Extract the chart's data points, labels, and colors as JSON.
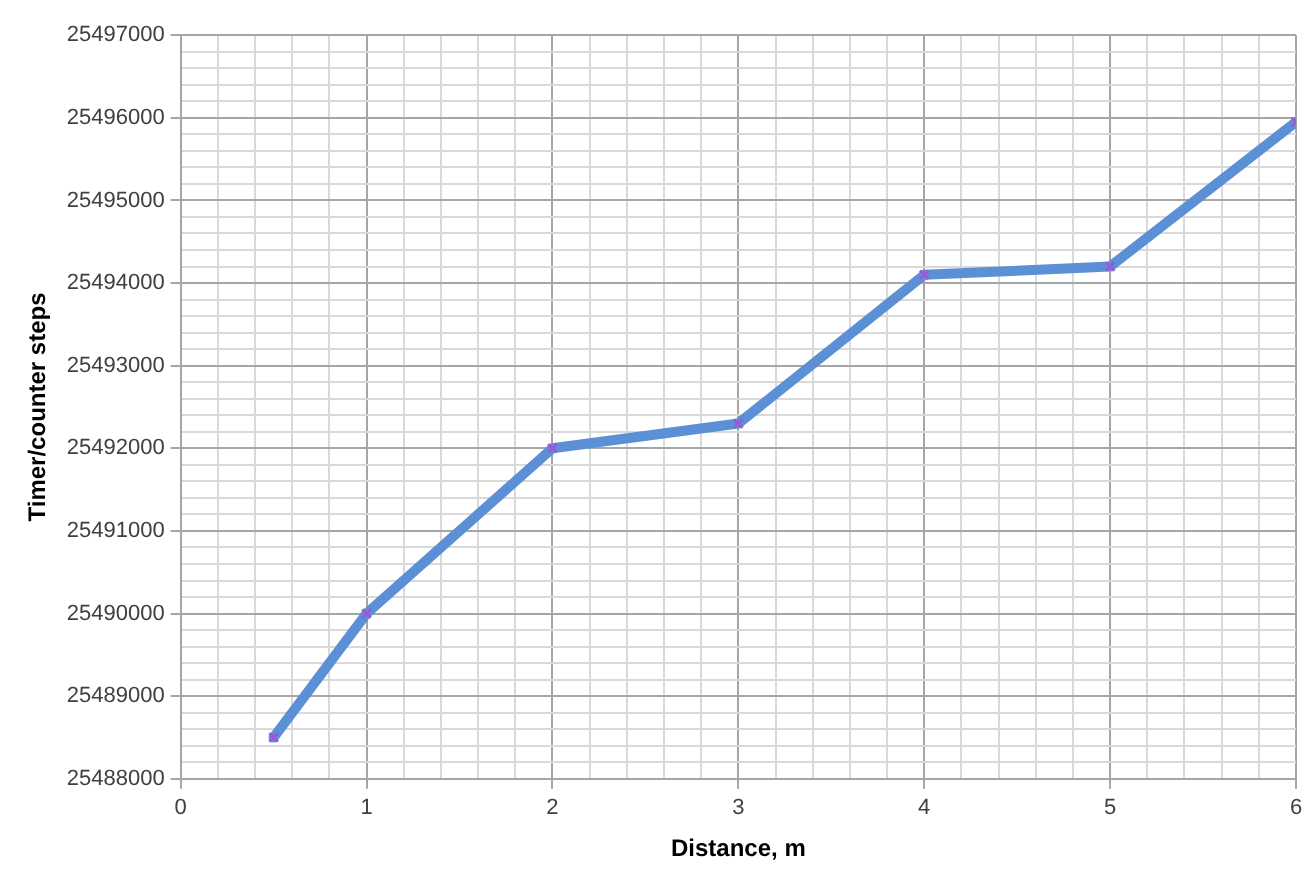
{
  "chart_data": {
    "type": "line",
    "xlabel": "Distance, m",
    "ylabel": "Timer/counter steps",
    "x": [
      0.5,
      1,
      2,
      3,
      4,
      5,
      6
    ],
    "series": [
      {
        "color": "#5b8fd6",
        "values": [
          25488500,
          25490000,
          25492000,
          25492300,
          25494100,
          25494200,
          25495950
        ]
      }
    ],
    "xlim": [
      0,
      6
    ],
    "xticks": [
      0,
      {
        "value": 0.2,
        "label": null
      },
      {
        "value": 0.4,
        "label": null
      },
      {
        "value": 0.6,
        "label": null
      },
      {
        "value": 0.8,
        "label": null
      },
      1,
      {
        "value": 1.2,
        "label": null
      },
      {
        "value": 1.4,
        "label": null
      },
      {
        "value": 1.6,
        "label": null
      },
      {
        "value": 1.8,
        "label": null
      },
      2,
      {
        "value": 2.2,
        "label": null
      },
      {
        "value": 2.4,
        "label": null
      },
      {
        "value": 2.6,
        "label": null
      },
      {
        "value": 2.8,
        "label": null
      },
      3,
      {
        "value": 3.2,
        "label": null
      },
      {
        "value": 3.4,
        "label": null
      },
      {
        "value": 3.6,
        "label": null
      },
      {
        "value": 3.8,
        "label": null
      },
      4,
      {
        "value": 4.2,
        "label": null
      },
      {
        "value": 4.4,
        "label": null
      },
      {
        "value": 4.6,
        "label": null
      },
      {
        "value": 4.8,
        "label": null
      },
      5,
      {
        "value": 5.2,
        "label": null
      },
      {
        "value": 5.4,
        "label": null
      },
      {
        "value": 5.6,
        "label": null
      },
      {
        "value": 5.8,
        "label": null
      },
      6
    ],
    "ylim": [
      25488000,
      25497000
    ],
    "yticks": [
      25488000,
      {
        "value": 25488200,
        "label": null
      },
      {
        "value": 25488400,
        "label": null
      },
      {
        "value": 25488600,
        "label": null
      },
      {
        "value": 25488800,
        "label": null
      },
      25489000,
      {
        "value": 25489200,
        "label": null
      },
      {
        "value": 25489400,
        "label": null
      },
      {
        "value": 25489600,
        "label": null
      },
      {
        "value": 25489800,
        "label": null
      },
      25490000,
      {
        "value": 25490200,
        "label": null
      },
      {
        "value": 25490400,
        "label": null
      },
      {
        "value": 25490600,
        "label": null
      },
      {
        "value": 25490800,
        "label": null
      },
      25491000,
      {
        "value": 25491200,
        "label": null
      },
      {
        "value": 25491400,
        "label": null
      },
      {
        "value": 25491600,
        "label": null
      },
      {
        "value": 25491800,
        "label": null
      },
      25492000,
      {
        "value": 25492200,
        "label": null
      },
      {
        "value": 25492400,
        "label": null
      },
      {
        "value": 25492600,
        "label": null
      },
      {
        "value": 25492800,
        "label": null
      },
      25493000,
      {
        "value": 25493200,
        "label": null
      },
      {
        "value": 25493400,
        "label": null
      },
      {
        "value": 25493600,
        "label": null
      },
      {
        "value": 25493800,
        "label": null
      },
      25494000,
      {
        "value": 25494200,
        "label": null
      },
      {
        "value": 25494400,
        "label": null
      },
      {
        "value": 25494600,
        "label": null
      },
      {
        "value": 25494800,
        "label": null
      },
      25495000,
      {
        "value": 25495200,
        "label": null
      },
      {
        "value": 25495400,
        "label": null
      },
      {
        "value": 25495600,
        "label": null
      },
      {
        "value": 25495800,
        "label": null
      },
      25496000,
      {
        "value": 25496200,
        "label": null
      },
      {
        "value": 25496400,
        "label": null
      },
      {
        "value": 25496600,
        "label": null
      },
      {
        "value": 25496800,
        "label": null
      },
      25497000
    ],
    "grid": true,
    "marker": "cross",
    "line_style": "solid",
    "legend": false
  }
}
